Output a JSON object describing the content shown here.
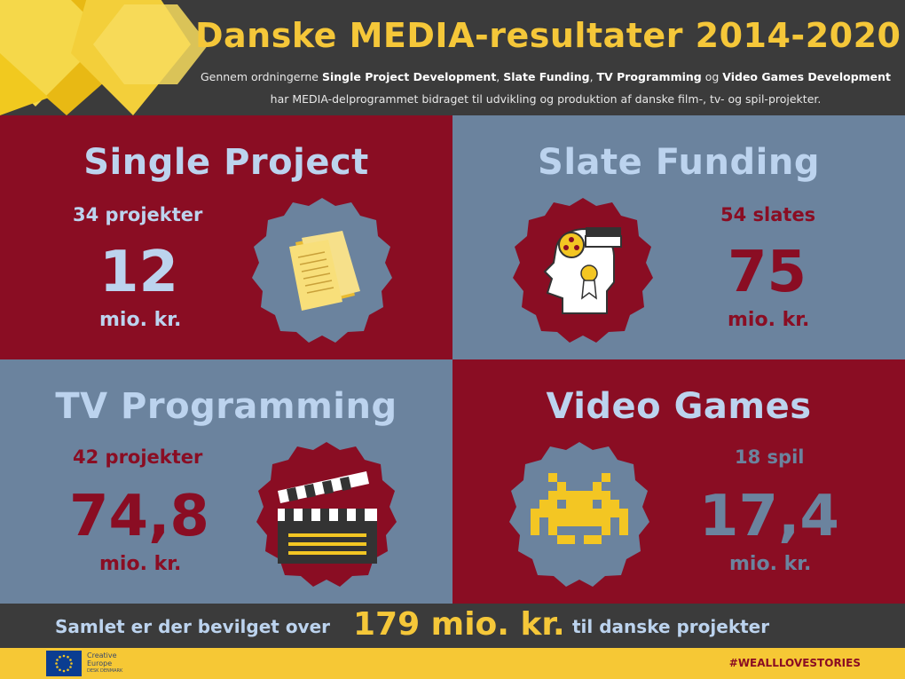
{
  "header": {
    "title": "Danske MEDIA-resultater 2014-2020",
    "subtitle": {
      "pre": "Gennem ordningerne ",
      "item1": "Single Project Development",
      "sep1": ", ",
      "item2": "Slate Funding",
      "sep2": ", ",
      "item3": "TV Programming",
      "sep3": " og ",
      "item4": "Video Games Development",
      "post": " har MEDIA-delprogrammet bidraget til udvikling og produktion af danske film-, tv- og spil-projekter."
    }
  },
  "panels": {
    "single_project": {
      "title": "Single Project",
      "count": "34 projekter",
      "amount": "12",
      "unit": "mio. kr.",
      "icon": "documents-icon"
    },
    "slate_funding": {
      "title": "Slate Funding",
      "count": "54 slates",
      "amount": "75",
      "unit": "mio. kr.",
      "icon": "film-head-icon"
    },
    "tv_programming": {
      "title": "TV Programming",
      "count": "42 projekter",
      "amount": "74,8",
      "unit": "mio. kr.",
      "icon": "clapperboard-icon"
    },
    "video_games": {
      "title": "Video Games",
      "count": "18 spil",
      "amount": "17,4",
      "unit": "mio. kr.",
      "icon": "space-invader-icon"
    }
  },
  "summary": {
    "pre": "Samlet er der bevilget over",
    "amount": "179 mio. kr.",
    "post": "til danske projekter"
  },
  "footer": {
    "logo_line1": "Creative",
    "logo_line2": "Europe",
    "logo_line3": "DESK DENMARK",
    "hashtag": "#WEALLLOVESTORIES"
  },
  "colors": {
    "red": "#8a0d23",
    "blue_gray": "#6b839e",
    "light_blue": "#bcd3ee",
    "yellow": "#f5c739",
    "dark": "#3b3b3b"
  }
}
